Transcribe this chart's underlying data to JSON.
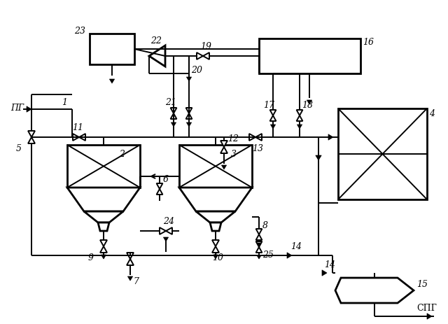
{
  "bg_color": "#ffffff",
  "line_color": "#000000",
  "lw": 1.4,
  "lw2": 2.0,
  "fig_width": 6.4,
  "fig_height": 4.63,
  "labels": {
    "PG": "ПГ",
    "SPG": "СПГ",
    "1": "1",
    "2": "2",
    "3": "3",
    "4": "4",
    "5": "5",
    "6": "6",
    "7": "7",
    "8": "8",
    "9": "9",
    "10": "10",
    "11": "11",
    "12": "12",
    "13": "13",
    "14": "14",
    "15": "15",
    "16": "16",
    "17": "17",
    "18": "18",
    "19": "19",
    "20": "20",
    "21": "21",
    "22": "22",
    "23": "23",
    "24": "24",
    "25": "25"
  }
}
